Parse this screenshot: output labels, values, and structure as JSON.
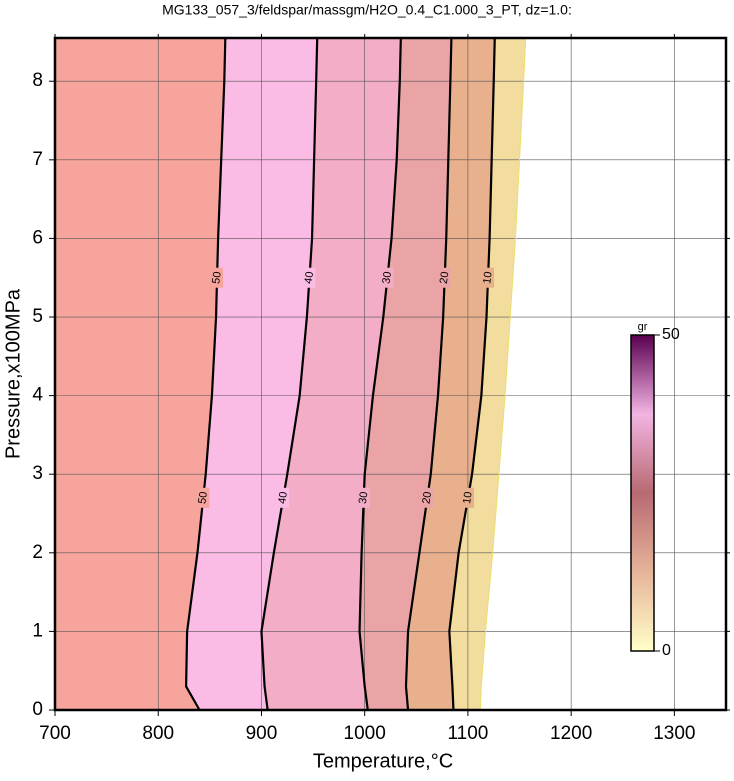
{
  "chart_data": {
    "type": "contour",
    "title": "MG133_057_3/feldspar/massgm/H2O_0.4_C1.000_3_PT, dz=1.0:",
    "x_label": "Temperature,°C",
    "y_label": "Pressure,x100MPa",
    "xlim": [
      700,
      1350
    ],
    "ylim": [
      0,
      8.55
    ],
    "xticks": [
      700,
      800,
      900,
      1000,
      1100,
      1200,
      1300
    ],
    "yticks": [
      0,
      1,
      2,
      3,
      4,
      5,
      6,
      7,
      8
    ],
    "grid": true,
    "pressure": [
      0,
      0.3,
      1,
      2,
      3,
      4,
      5,
      6,
      7,
      8,
      8.55
    ],
    "contours": [
      {
        "level": 0,
        "fill": "#f2dc9e",
        "T": [
          1112,
          1113,
          1117,
          1124,
          1130,
          1136,
          1141,
          1146,
          1150,
          1154,
          1156
        ]
      },
      {
        "level": 10,
        "fill": "#e9b08e",
        "T": [
          1086,
          1085,
          1082,
          1091,
          1104,
          1113,
          1118,
          1121,
          1123,
          1125,
          1126
        ]
      },
      {
        "level": 20,
        "fill": "#eaa4a6",
        "T": [
          1042,
          1040,
          1042,
          1053,
          1064,
          1071,
          1076,
          1079,
          1081,
          1083,
          1084
        ]
      },
      {
        "level": 30,
        "fill": "#f3adc6",
        "T": [
          1003,
          1000,
          995,
          997,
          1000,
          1008,
          1018,
          1026,
          1031,
          1034,
          1035
        ]
      },
      {
        "level": 40,
        "fill": "#fabbe4",
        "T": [
          906,
          903,
          900,
          912,
          925,
          937,
          944,
          949,
          951,
          953,
          954
        ]
      },
      {
        "level": 50,
        "fill": "#f6a49c",
        "T": [
          840,
          827,
          828,
          838,
          846,
          852,
          856,
          858,
          861,
          864,
          865
        ]
      }
    ],
    "colorbar": {
      "label": "gr",
      "ticks": [
        0,
        50
      ],
      "colors": [
        "#ffffc8",
        "#e6b49a",
        "#b86a72",
        "#f2b4e2",
        "#5a0050"
      ]
    }
  }
}
